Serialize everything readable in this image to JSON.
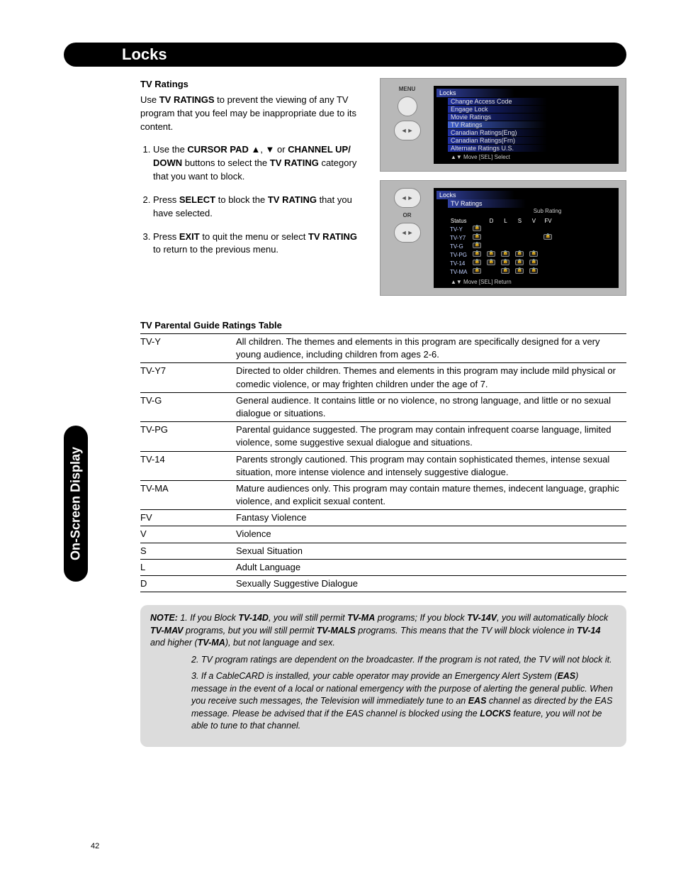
{
  "header": {
    "title": "Locks"
  },
  "sideTab": {
    "label": "On-Screen Display"
  },
  "tvRatings": {
    "heading": "TV Ratings",
    "introPrefix": "Use ",
    "introBold": "TV RATINGS",
    "introSuffix": " to prevent the viewing of any TV program that you feel may be inappropriate due to its content.",
    "step1_a": "Use the ",
    "step1_b": "CURSOR PAD",
    "step1_c": " ▲, ▼ or ",
    "step1_d": "CHANNEL UP/ DOWN",
    "step1_e": "  buttons to select the ",
    "step1_f": "TV RATING",
    "step1_g": " category that you want to block.",
    "step2_a": "Press ",
    "step2_b": "SELECT",
    "step2_c": " to block the ",
    "step2_d": "TV RATING",
    "step2_e": " that you have selected.",
    "step3_a": "Press ",
    "step3_b": "EXIT",
    "step3_c": " to quit the menu or select ",
    "step3_d": "TV RATING",
    "step3_e": " to return to the previous menu."
  },
  "osd1": {
    "menuLabel": "MENU",
    "title": "Locks",
    "items": [
      "Change Access Code",
      "Engage Lock",
      "Movie Ratings",
      "TV Ratings",
      "Canadian Ratings(Eng)",
      "Canadian Ratings(Frn)",
      "Alternate Ratings U.S."
    ],
    "highlightIndex": 3,
    "nav": "▲▼ Move    [SEL] Select"
  },
  "osd2": {
    "orLabel": "OR",
    "title": "Locks",
    "subtitle": "TV Ratings",
    "subRatingLabel": "Sub Rating",
    "cols": [
      "Status",
      "",
      "D",
      "L",
      "S",
      "V",
      "FV"
    ],
    "rows": [
      {
        "label": "TV-Y",
        "cells": [
          1,
          0,
          0,
          0,
          0,
          0
        ]
      },
      {
        "label": "TV-Y7",
        "cells": [
          1,
          0,
          0,
          0,
          0,
          1
        ]
      },
      {
        "label": "TV-G",
        "cells": [
          1,
          0,
          0,
          0,
          0,
          0
        ]
      },
      {
        "label": "TV-PG",
        "cells": [
          1,
          1,
          1,
          1,
          1,
          0
        ]
      },
      {
        "label": "TV-14",
        "cells": [
          1,
          1,
          1,
          1,
          1,
          0
        ]
      },
      {
        "label": "TV-MA",
        "cells": [
          1,
          0,
          1,
          1,
          1,
          0
        ]
      }
    ],
    "nav": "▲▼ Move    [SEL] Return"
  },
  "ratingsTable": {
    "heading": "TV Parental Guide Ratings Table",
    "rows": [
      {
        "code": "TV-Y",
        "desc": "All children. The themes and elements in this program are specifically designed for a very young audience, including children from ages 2-6."
      },
      {
        "code": "TV-Y7",
        "desc": "Directed to older children. Themes and elements in this program may include mild physical or comedic violence, or may frighten children under the age of 7."
      },
      {
        "code": "TV-G",
        "desc": "General audience. It contains little or no violence, no strong language, and little or no sexual dialogue or situations."
      },
      {
        "code": "TV-PG",
        "desc": "Parental guidance suggested. The program may contain infrequent coarse language, limited violence, some suggestive sexual dialogue and situations."
      },
      {
        "code": "TV-14",
        "desc": "Parents strongly cautioned. This program may contain sophisticated themes, intense sexual situation, more intense violence and intensely suggestive dialogue."
      },
      {
        "code": "TV-MA",
        "desc": "Mature audiences only. This program may contain mature themes, indecent language, graphic violence, and explicit sexual content."
      },
      {
        "code": "FV",
        "desc": "Fantasy Violence"
      },
      {
        "code": "V",
        "desc": "Violence"
      },
      {
        "code": "S",
        "desc": "Sexual Situation"
      },
      {
        "code": "L",
        "desc": "Adult Language"
      },
      {
        "code": "D",
        "desc": "Sexually Suggestive Dialogue"
      }
    ]
  },
  "note": {
    "label": "NOTE:",
    "items": [
      {
        "parts": [
          {
            "t": "If you Block "
          },
          {
            "t": "TV-14D",
            "b": true
          },
          {
            "t": ", you will still permit "
          },
          {
            "t": "TV-MA",
            "b": true
          },
          {
            "t": " programs; If you block "
          },
          {
            "t": "TV-14V",
            "b": true
          },
          {
            "t": ", you will automatically block "
          },
          {
            "t": "TV-MAV",
            "b": true
          },
          {
            "t": " programs, but you will still permit "
          },
          {
            "t": "TV-MALS",
            "b": true
          },
          {
            "t": " programs. This means that the TV will block violence in "
          },
          {
            "t": "TV-14",
            "b": true
          },
          {
            "t": " and higher ("
          },
          {
            "t": "TV-MA",
            "b": true
          },
          {
            "t": "), but not language and sex."
          }
        ]
      },
      {
        "parts": [
          {
            "t": "TV program ratings are dependent on the broadcaster. If the program is not rated, the TV will not block it."
          }
        ]
      },
      {
        "parts": [
          {
            "t": "If a CableCARD is installed, your cable operator may provide an Emergency Alert System ("
          },
          {
            "t": "EAS",
            "b": true
          },
          {
            "t": ") message in the event of a local or national emergency with the purpose of alerting the general public. When you receive such messages, the Television will immediately tune to an "
          },
          {
            "t": "EAS",
            "b": true
          },
          {
            "t": " channel as directed by the EAS message. Please be advised that if the EAS channel is blocked using the "
          },
          {
            "t": "LOCKS",
            "b": true
          },
          {
            "t": " feature, you will not be able to tune to that channel."
          }
        ]
      }
    ]
  },
  "pageNumber": "42"
}
